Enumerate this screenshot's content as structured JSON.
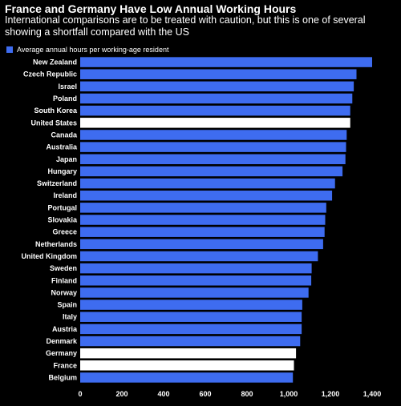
{
  "title": "France and Germany Have Low Annual Working Hours",
  "subtitle": "International comparisons are to be treated with caution, but this is one of several showing a shortfall compared with the US",
  "colors": {
    "background": "#000000",
    "bar": "#3e6cf0",
    "highlight": "#ffffff",
    "text": "#ffffff"
  },
  "chart_data": {
    "type": "bar",
    "orientation": "horizontal",
    "categories": [
      "New Zealand",
      "Czech Republic",
      "Israel",
      "Poland",
      "South Korea",
      "United States",
      "Canada",
      "Australia",
      "Japan",
      "Hungary",
      "Switzerland",
      "Ireland",
      "Portugal",
      "Slovakia",
      "Greece",
      "Netherlands",
      "United Kingdom",
      "Sweden",
      "Finland",
      "Norway",
      "Spain",
      "Italy",
      "Austria",
      "Denmark",
      "Germany",
      "France",
      "Belgium"
    ],
    "series": [
      {
        "name": "Average annual hours per working-age resident",
        "values": [
          1400,
          1325,
          1312,
          1305,
          1295,
          1295,
          1278,
          1275,
          1272,
          1258,
          1222,
          1208,
          1180,
          1175,
          1172,
          1165,
          1140,
          1110,
          1108,
          1095,
          1065,
          1062,
          1062,
          1055,
          1035,
          1025,
          1020
        ]
      }
    ],
    "highlighted": [
      "United States",
      "Germany",
      "France"
    ],
    "x_ticks": [
      "0",
      "200",
      "400",
      "600",
      "800",
      "1,000",
      "1,200",
      "1,400"
    ],
    "xlim": [
      0,
      1400
    ],
    "legend": "top-left",
    "grid": false
  }
}
